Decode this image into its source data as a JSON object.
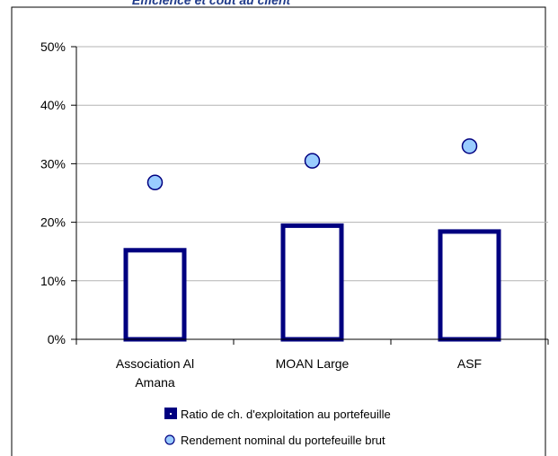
{
  "chart_data": {
    "type": "bar",
    "title": "Efficience et coût au client",
    "categories": [
      [
        "Association Al",
        "Amana"
      ],
      [
        "MOAN Large"
      ],
      [
        "ASF"
      ]
    ],
    "y_ticks": [
      "0%",
      "10%",
      "20%",
      "30%",
      "40%",
      "50%"
    ],
    "ylim": [
      0,
      50
    ],
    "grid": true,
    "legend_position": "bottom",
    "series": [
      {
        "name": "Ratio de ch. d'exploitation au portefeuille",
        "kind": "bar",
        "values": [
          15.6,
          19.8,
          18.8
        ]
      },
      {
        "name": "Rendement nominal du portefeuille brut",
        "kind": "scatter",
        "values": [
          26.8,
          30.5,
          33.0
        ]
      }
    ],
    "colors": {
      "bar_stroke": "#000080",
      "bar_fill": "#ffffff",
      "marker_fill": "#99ccff",
      "marker_stroke": "#000080",
      "grid": "#b3b3b3",
      "axis": "#000000"
    }
  }
}
